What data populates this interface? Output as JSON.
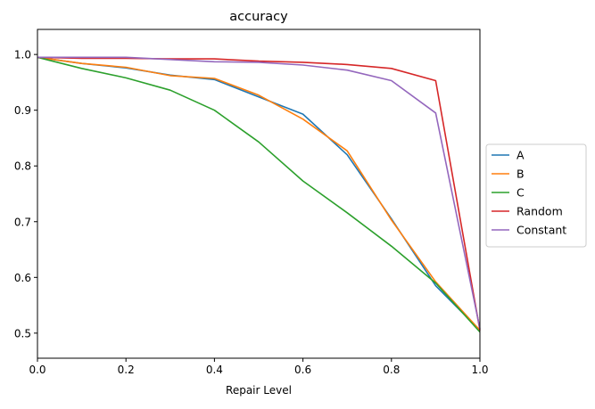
{
  "chart_data": {
    "type": "line",
    "title": "accuracy",
    "xlabel": "Repair Level",
    "ylabel": "",
    "xlim": [
      0.0,
      1.0
    ],
    "ylim": [
      0.455,
      1.045
    ],
    "x": [
      0.0,
      0.1,
      0.2,
      0.3,
      0.4,
      0.5,
      0.6,
      0.7,
      0.8,
      0.9,
      1.0
    ],
    "x_ticks": [
      "0.0",
      "0.2",
      "0.4",
      "0.6",
      "0.8",
      "1.0"
    ],
    "x_tick_values": [
      0.0,
      0.2,
      0.4,
      0.6,
      0.8,
      1.0
    ],
    "y_ticks": [
      "0.5",
      "0.6",
      "0.7",
      "0.8",
      "0.9",
      "1.0"
    ],
    "y_tick_values": [
      0.5,
      0.6,
      0.7,
      0.8,
      0.9,
      1.0
    ],
    "grid": false,
    "legend_position": "center-right outside",
    "series": [
      {
        "name": "A",
        "color": "#1f77b4",
        "values": [
          0.995,
          0.984,
          0.976,
          0.963,
          0.955,
          0.924,
          0.893,
          0.82,
          0.705,
          0.585,
          0.505
        ]
      },
      {
        "name": "B",
        "color": "#ff7f0e",
        "values": [
          0.995,
          0.984,
          0.977,
          0.962,
          0.957,
          0.927,
          0.884,
          0.827,
          0.703,
          0.592,
          0.505
        ]
      },
      {
        "name": "C",
        "color": "#2ca02c",
        "values": [
          0.995,
          0.975,
          0.958,
          0.936,
          0.9,
          0.843,
          0.773,
          0.716,
          0.656,
          0.59,
          0.502
        ]
      },
      {
        "name": "Random",
        "color": "#d62728",
        "values": [
          0.995,
          0.993,
          0.993,
          0.992,
          0.992,
          0.988,
          0.986,
          0.982,
          0.975,
          0.953,
          0.505
        ]
      },
      {
        "name": "Constant",
        "color": "#9467bd",
        "values": [
          0.995,
          0.995,
          0.995,
          0.991,
          0.987,
          0.986,
          0.981,
          0.972,
          0.953,
          0.895,
          0.508
        ]
      }
    ]
  }
}
